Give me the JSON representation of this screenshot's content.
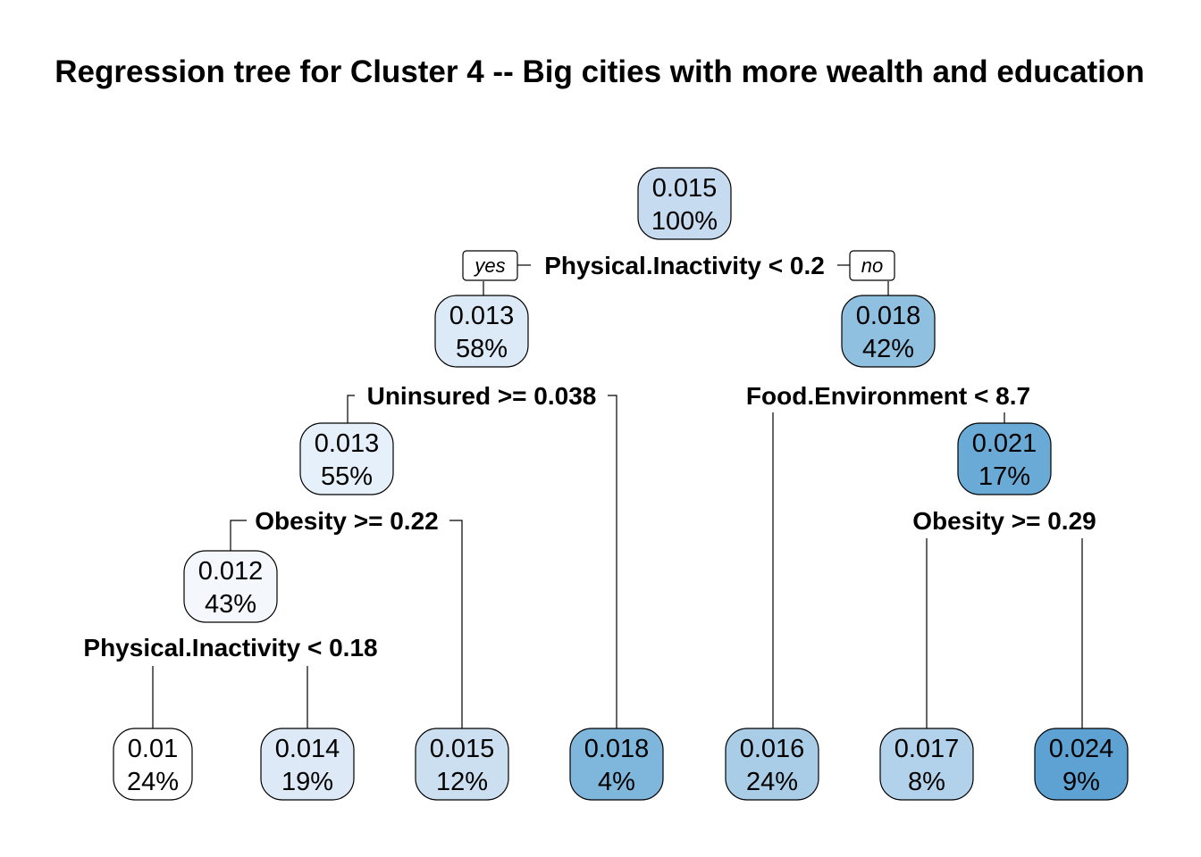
{
  "title": "Regression tree for Cluster 4 -- Big cities with more wealth and education",
  "branch_labels": {
    "yes": "yes",
    "no": "no"
  },
  "colors": {
    "low": "#f7fbff",
    "high": "#5ea2d3",
    "edge": "#000000"
  },
  "nodes": [
    {
      "id": "n1",
      "value": "0.015",
      "percent": "100%",
      "fill": "#c6dbef"
    },
    {
      "id": "n2",
      "value": "0.013",
      "percent": "58%",
      "fill": "#dce9f6"
    },
    {
      "id": "n3",
      "value": "0.018",
      "percent": "42%",
      "fill": "#8fc0e0"
    },
    {
      "id": "n4",
      "value": "0.013",
      "percent": "55%",
      "fill": "#e6f0fa"
    },
    {
      "id": "n7",
      "value": "0.021",
      "percent": "17%",
      "fill": "#6aaad6"
    },
    {
      "id": "n8",
      "value": "0.012",
      "percent": "43%",
      "fill": "#f4f8fd"
    },
    {
      "id": "l1",
      "value": "0.01",
      "percent": "24%",
      "fill": "#ffffff"
    },
    {
      "id": "l2",
      "value": "0.014",
      "percent": "19%",
      "fill": "#dde9f6"
    },
    {
      "id": "l3",
      "value": "0.015",
      "percent": "12%",
      "fill": "#ccdff0"
    },
    {
      "id": "l4",
      "value": "0.018",
      "percent": "4%",
      "fill": "#7fb6dc"
    },
    {
      "id": "l5",
      "value": "0.016",
      "percent": "24%",
      "fill": "#a9cde7"
    },
    {
      "id": "l6",
      "value": "0.017",
      "percent": "8%",
      "fill": "#b1d2ea"
    },
    {
      "id": "l7",
      "value": "0.024",
      "percent": "9%",
      "fill": "#5ea2d3"
    }
  ],
  "splits": [
    {
      "id": "s1",
      "label": "Physical.Inactivity < 0.2"
    },
    {
      "id": "s2",
      "label": "Uninsured >= 0.038"
    },
    {
      "id": "s3",
      "label": "Food.Environment < 8.7"
    },
    {
      "id": "s4",
      "label": "Obesity >= 0.22"
    },
    {
      "id": "s5",
      "label": "Obesity >= 0.29"
    },
    {
      "id": "s6",
      "label": "Physical.Inactivity < 0.18"
    }
  ]
}
